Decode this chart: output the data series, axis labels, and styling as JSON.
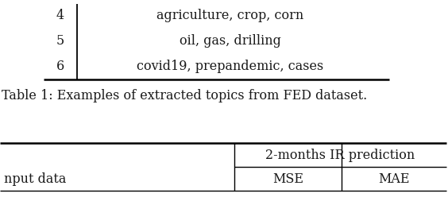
{
  "table1_rows": [
    [
      "4",
      "agriculture, crop, corn"
    ],
    [
      "5",
      "oil, gas, drilling"
    ],
    [
      "6",
      "covid19, prepandemic, cases"
    ]
  ],
  "table1_caption": "Table 1: Examples of extracted topics from FED dataset.",
  "table2_header_span": "2-months IR prediction",
  "table2_subheaders": [
    "MSE",
    "MAE"
  ],
  "table2_first_col": "nput data",
  "bg_color": "#ffffff",
  "text_color": "#1a1a1a",
  "font_size": 11.5,
  "caption_font_size": 11.5
}
